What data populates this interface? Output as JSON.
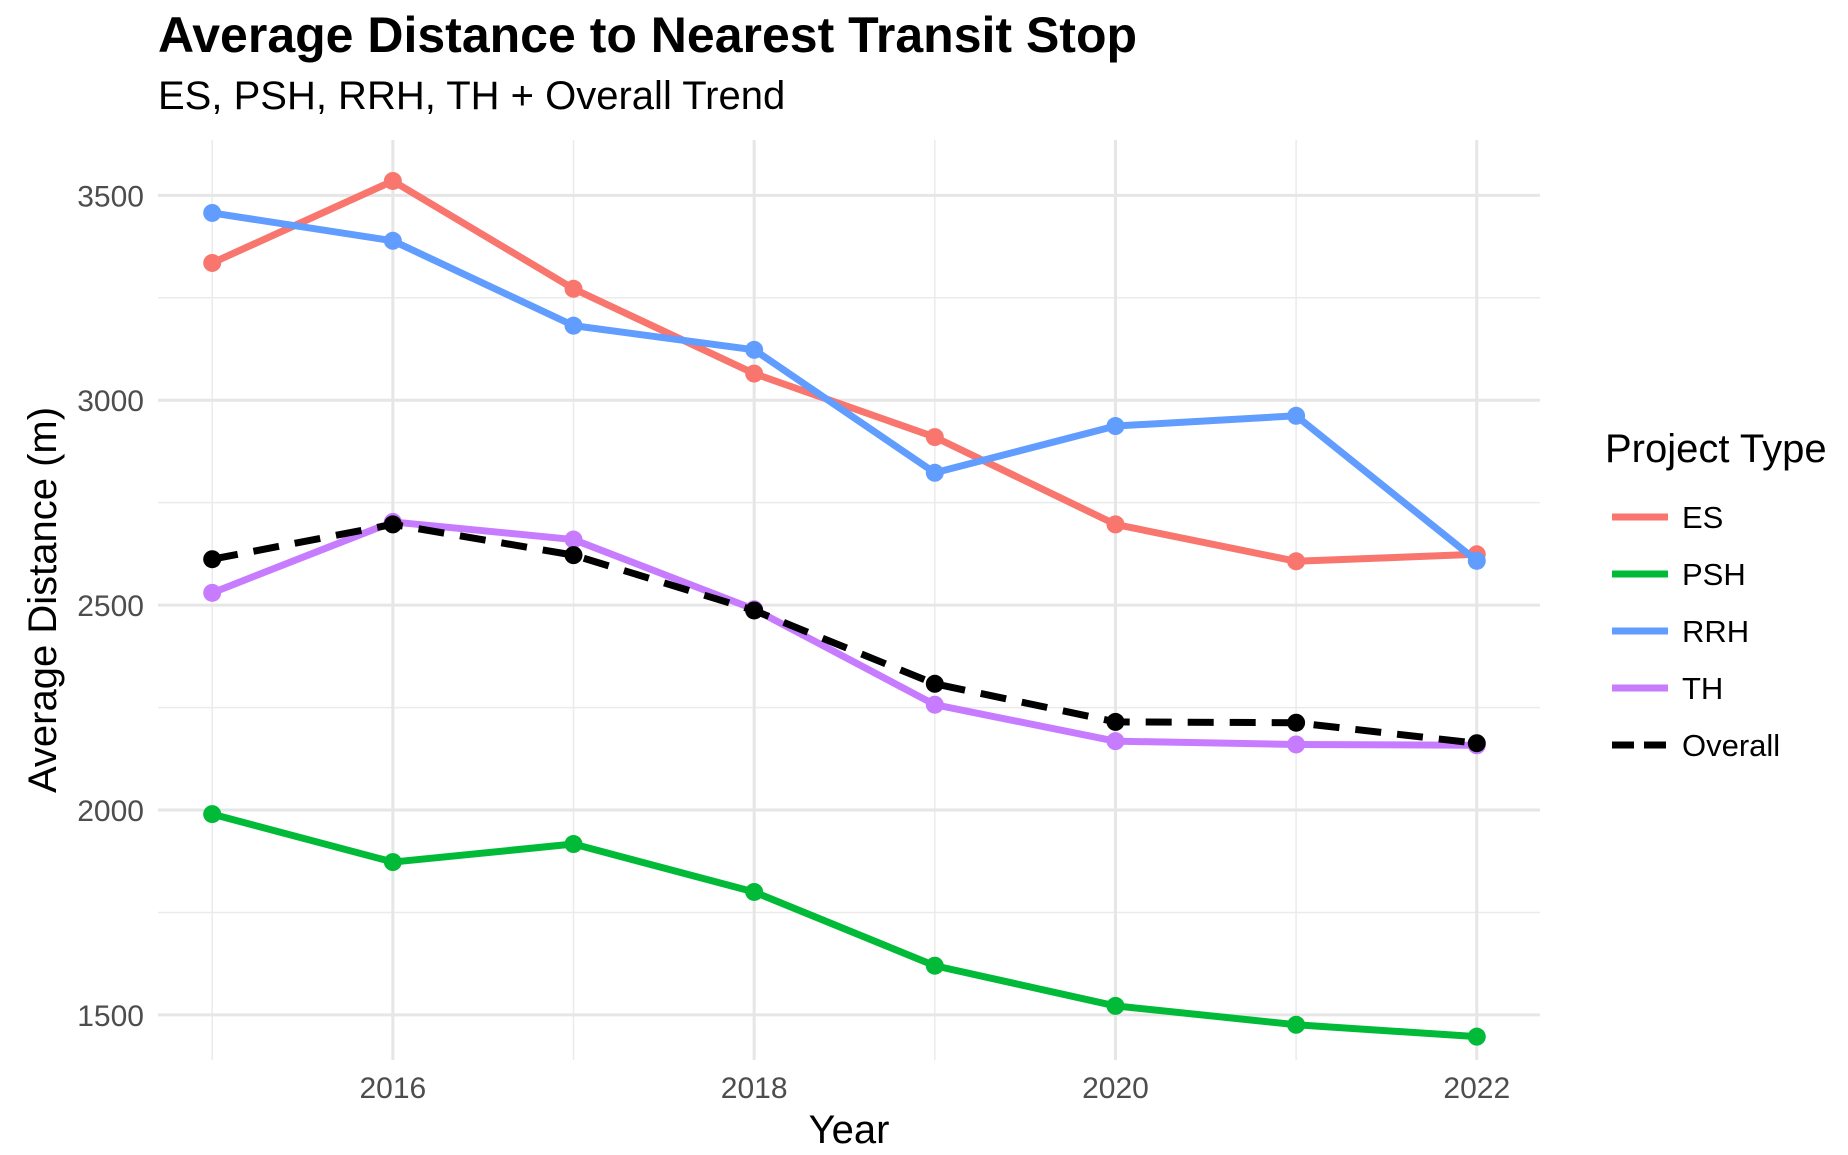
{
  "chart_data": {
    "type": "line",
    "title": "Average Distance to Nearest Transit Stop",
    "subtitle": "ES, PSH, RRH, TH + Overall Trend",
    "xlabel": "Year",
    "ylabel": "Average Distance (m)",
    "x": [
      2015,
      2016,
      2017,
      2018,
      2019,
      2020,
      2021,
      2022
    ],
    "xlim": [
      2014.7,
      2022.35
    ],
    "ylim": [
      1390,
      3635
    ],
    "x_ticks": [
      2016,
      2018,
      2020,
      2022
    ],
    "y_ticks": [
      1500,
      2000,
      2500,
      3000,
      3500
    ],
    "y_minor_ticks": [
      1750,
      2250,
      2750,
      3250
    ],
    "x_minor_ticks": [
      2015,
      2017,
      2019,
      2021
    ],
    "grid": true,
    "legend": {
      "title": "Project Type",
      "position": "right"
    },
    "series": [
      {
        "name": "ES",
        "color": "#f8766d",
        "dashed": false,
        "values": [
          3335,
          3535,
          3272,
          3065,
          2910,
          2697,
          2607,
          2624
        ]
      },
      {
        "name": "PSH",
        "color": "#00ba38",
        "dashed": false,
        "values": [
          1990,
          1873,
          1917,
          1800,
          1620,
          1522,
          1476,
          1447
        ]
      },
      {
        "name": "RRH",
        "color": "#619cff",
        "dashed": false,
        "values": [
          3457,
          3389,
          3182,
          3123,
          2823,
          2937,
          2962,
          2608
        ]
      },
      {
        "name": "TH",
        "color": "#c77cff",
        "dashed": false,
        "values": [
          2530,
          2703,
          2660,
          2490,
          2257,
          2168,
          2160,
          2158
        ]
      },
      {
        "name": "Overall",
        "color": "#000000",
        "dashed": true,
        "values": [
          2612,
          2697,
          2622,
          2487,
          2308,
          2215,
          2213,
          2163
        ]
      }
    ]
  }
}
